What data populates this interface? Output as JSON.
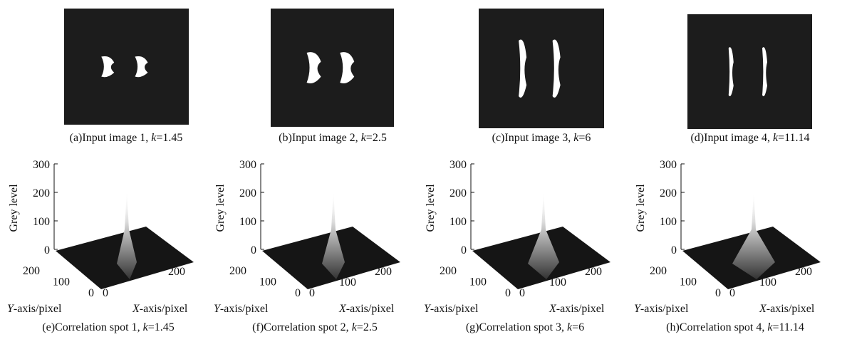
{
  "panels": [
    {
      "image_caption": {
        "text": "(a)Input image 1,",
        "var": "k",
        "value": "=1.45"
      },
      "plot": {
        "z_label": "Grey level",
        "z_ticks": [
          0,
          100,
          200,
          300
        ],
        "y_label": {
          "var": "Y",
          "text": "-axis/pixel"
        },
        "y_ticks": [
          0,
          100,
          200
        ],
        "x_label": {
          "var": "X",
          "text": "-axis/pixel"
        },
        "x_ticks": [
          0,
          200
        ],
        "caption": {
          "text": "(e)Correlation spot 1,",
          "var": "k",
          "value": "=1.45"
        }
      }
    },
    {
      "image_caption": {
        "text": "(b)Input image 2,",
        "var": "k",
        "value": "=2.5"
      },
      "plot": {
        "z_label": "Grey level",
        "z_ticks": [
          0,
          100,
          200,
          300
        ],
        "y_label": {
          "var": "Y",
          "text": "-axis/pixel"
        },
        "y_ticks": [
          0,
          100,
          200
        ],
        "x_label": {
          "var": "X",
          "text": "-axis/pixel"
        },
        "x_ticks": [
          0,
          100,
          200
        ],
        "caption": {
          "text": "(f)Correlation spot 2,",
          "var": "k",
          "value": "=2.5"
        }
      }
    },
    {
      "image_caption": {
        "text": "(c)Input image 3,",
        "var": "k",
        "value": "=6"
      },
      "plot": {
        "z_label": "Grey level",
        "z_ticks": [
          0,
          100,
          200,
          300
        ],
        "y_label": {
          "var": "Y",
          "text": "-axis/pixel"
        },
        "y_ticks": [
          0,
          100,
          200
        ],
        "x_label": {
          "var": "X",
          "text": "-axis/pixel"
        },
        "x_ticks": [
          0,
          100,
          200
        ],
        "caption": {
          "text": "(g)Correlation spot 3,",
          "var": "k",
          "value": "=6"
        }
      }
    },
    {
      "image_caption": {
        "text": "(d)Input image 4,",
        "var": "k",
        "value": "=11.14"
      },
      "plot": {
        "z_label": "Grey level",
        "z_ticks": [
          0,
          100,
          200,
          300
        ],
        "y_label": {
          "var": "Y",
          "text": "-axis/pixel"
        },
        "y_ticks": [
          0,
          100,
          200
        ],
        "x_label": {
          "var": "X",
          "text": "-axis/pixel"
        },
        "x_ticks": [
          0,
          100,
          200
        ],
        "caption": {
          "text": "(h)Correlation spot 4,",
          "var": "k",
          "value": "=11.14"
        }
      }
    }
  ]
}
